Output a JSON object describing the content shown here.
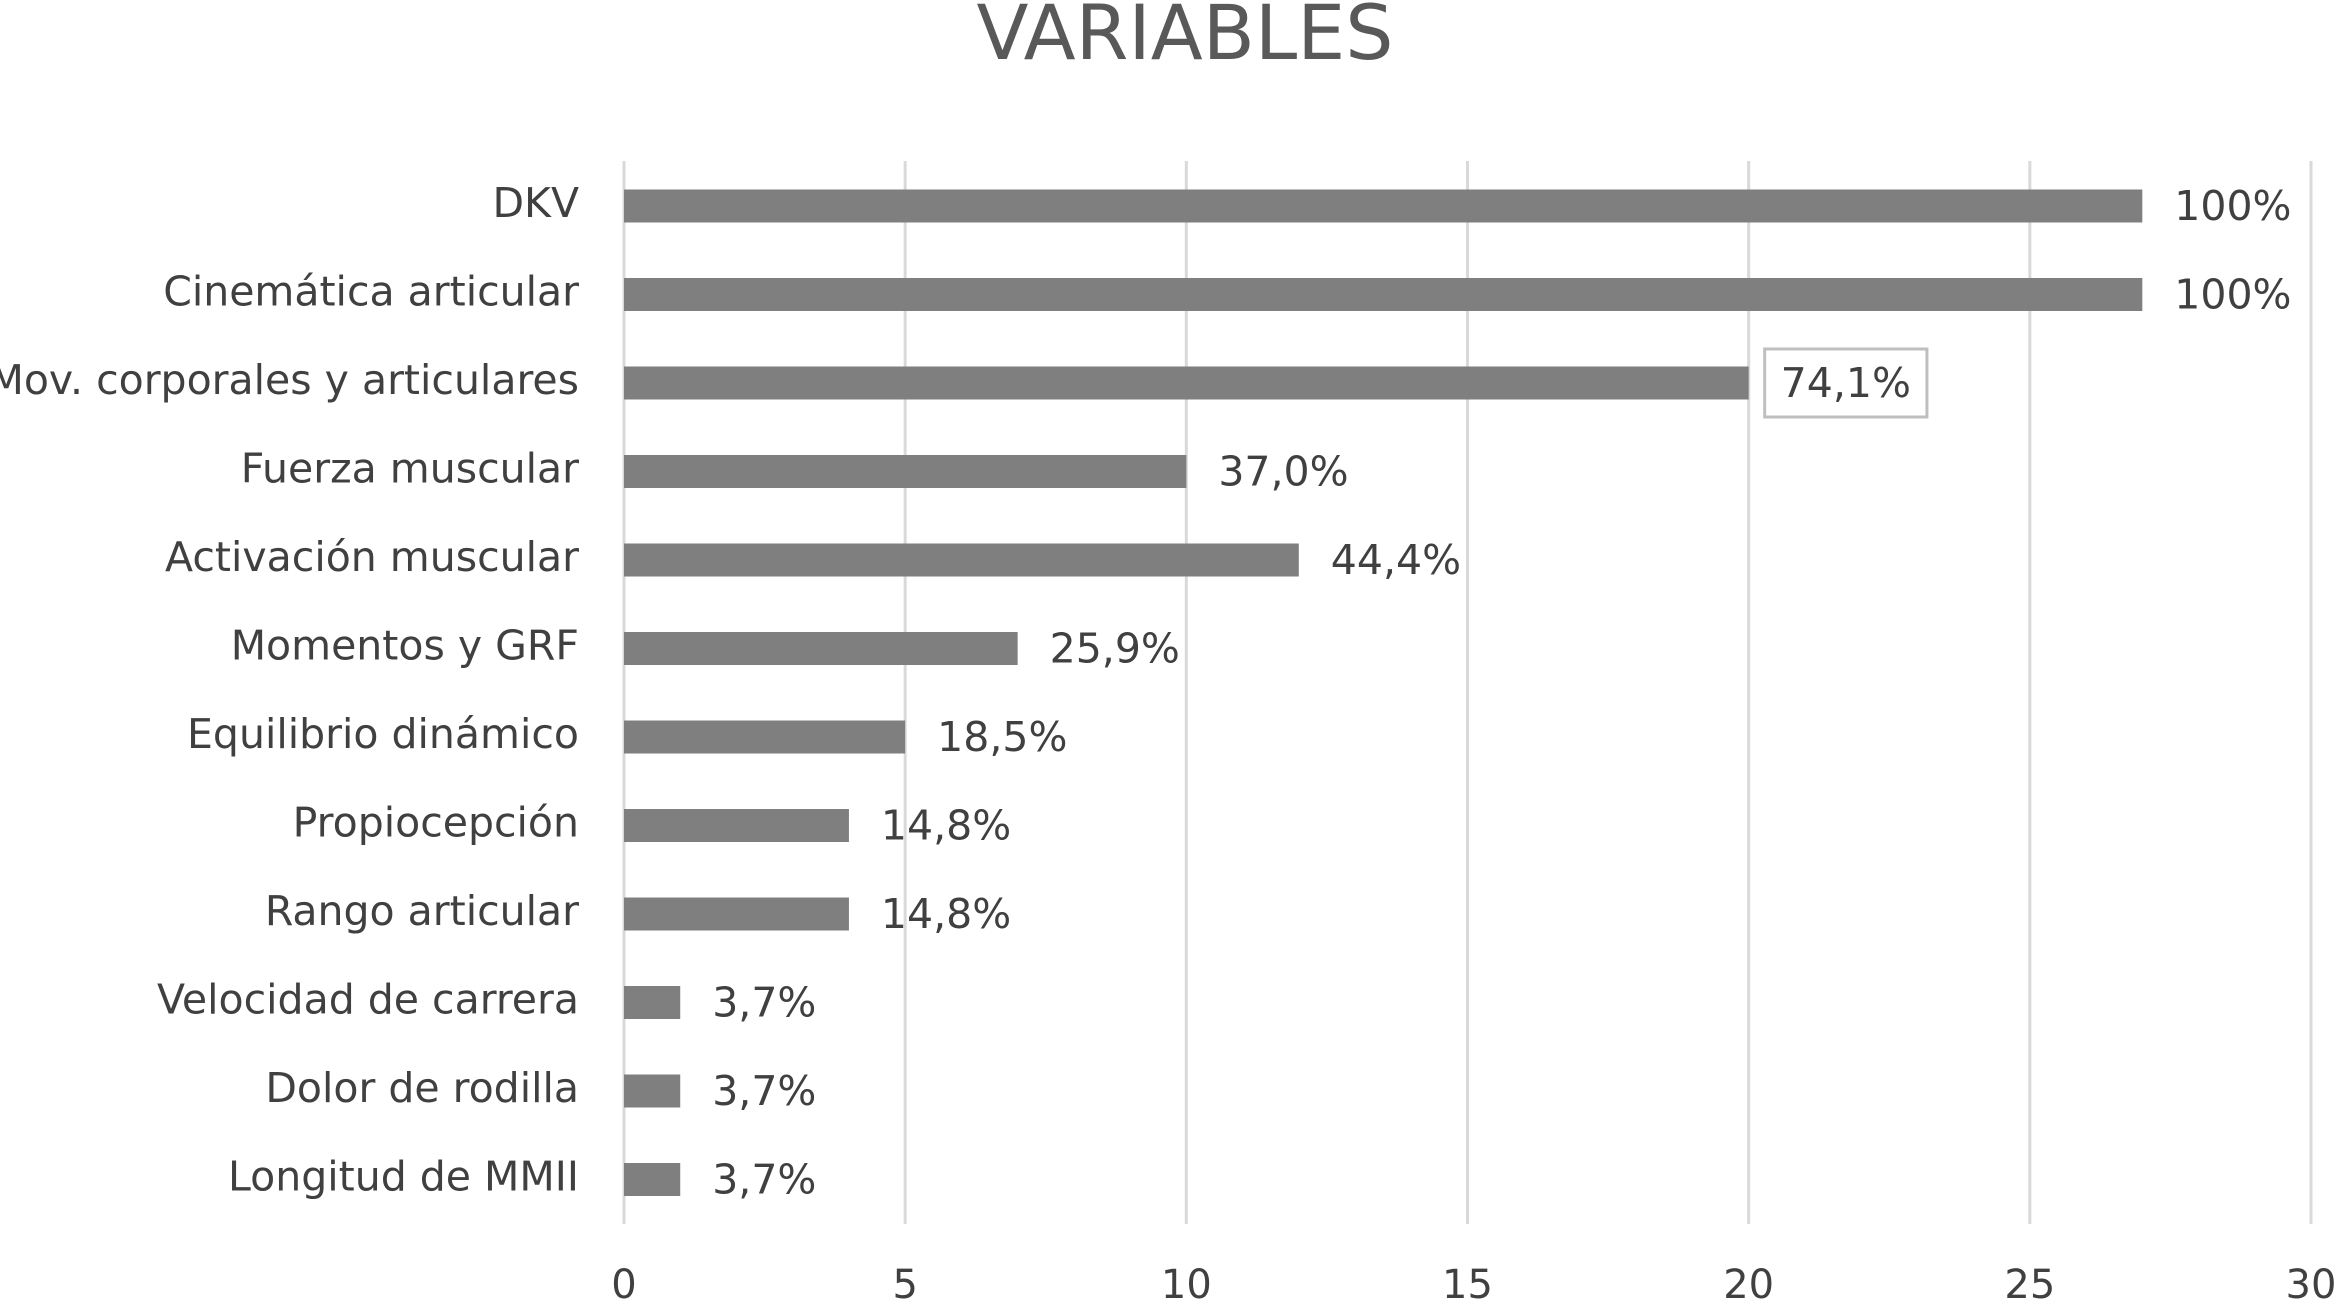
{
  "chart_data": {
    "type": "bar",
    "orientation": "horizontal",
    "title": "VARIABLES",
    "categories": [
      "DKV",
      "Cinemática articular",
      "Mov. corporales y articulares",
      "Fuerza muscular",
      "Activación muscular",
      "Momentos y GRF",
      "Equilibrio dinámico",
      "Propiocepción",
      "Rango articular",
      "Velocidad de carrera",
      "Dolor de rodilla",
      "Longitud de MMII"
    ],
    "values": [
      27,
      27,
      20,
      10,
      12,
      7,
      5,
      4,
      4,
      1,
      1,
      1
    ],
    "value_labels": [
      "100%",
      "100%",
      "74,1%",
      "37,0%",
      "44,4%",
      "25,9%",
      "18,5%",
      "14,8%",
      "14,8%",
      "3,7%",
      "3,7%",
      "3,7%"
    ],
    "color": "#7f7f7f",
    "xlim": [
      0,
      30
    ],
    "xticks": [
      0,
      5,
      10,
      15,
      20,
      25,
      30
    ],
    "grid": true
  }
}
